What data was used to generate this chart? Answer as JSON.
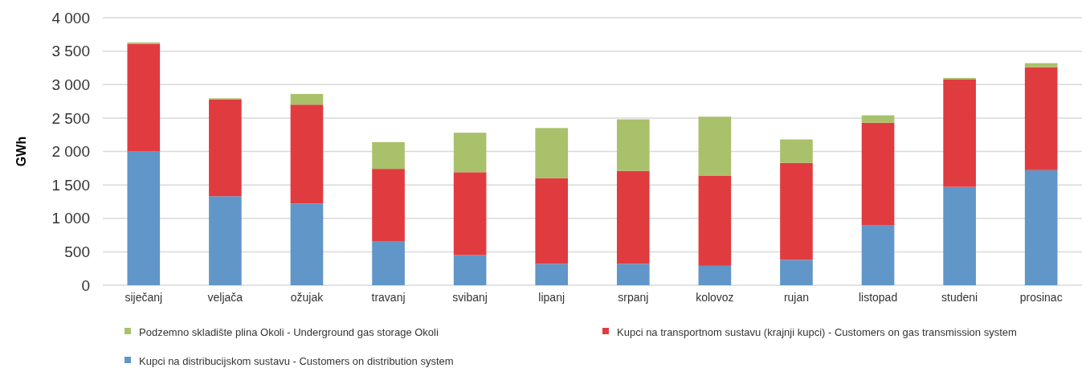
{
  "chart_data": {
    "type": "bar",
    "stacked": true,
    "ylabel": "GWh",
    "categories": [
      "siječanj",
      "veljača",
      "ožujak",
      "travanj",
      "svibanj",
      "lipanj",
      "srpanj",
      "kolovoz",
      "rujan",
      "listopad",
      "studeni",
      "prosinac"
    ],
    "series": [
      {
        "name": "Kupci na distribucijskom sustavu - Customers on distribution system",
        "color": "#6096c8",
        "values": [
          2000,
          1330,
          1220,
          660,
          450,
          320,
          320,
          290,
          380,
          900,
          1470,
          1720
        ]
      },
      {
        "name": "Kupci na transportnom sustavu (krajnji kupci) - Customers on gas transmission system",
        "color": "#e03c40",
        "values": [
          1610,
          1450,
          1480,
          1080,
          1240,
          1280,
          1390,
          1350,
          1450,
          1530,
          1610,
          1540
        ]
      },
      {
        "name": "Podzemno skladište plina Okoli - Underground gas storage Okoli",
        "color": "#a9c16a",
        "values": [
          20,
          15,
          160,
          400,
          590,
          750,
          770,
          880,
          350,
          110,
          20,
          60
        ]
      }
    ],
    "ylim": [
      0,
      4000
    ],
    "yticks": [
      0,
      500,
      {
        "value": 1000,
        "label": "1 000"
      },
      {
        "value": 1500,
        "label": "1 500"
      },
      {
        "value": 2000,
        "label": "2 000"
      },
      {
        "value": 2500,
        "label": "2 500"
      },
      {
        "value": 3000,
        "label": "3 000"
      },
      {
        "value": 3500,
        "label": "3 500"
      },
      {
        "value": 4000,
        "label": "4 000"
      }
    ],
    "grid": "y",
    "legend": "bottom"
  }
}
